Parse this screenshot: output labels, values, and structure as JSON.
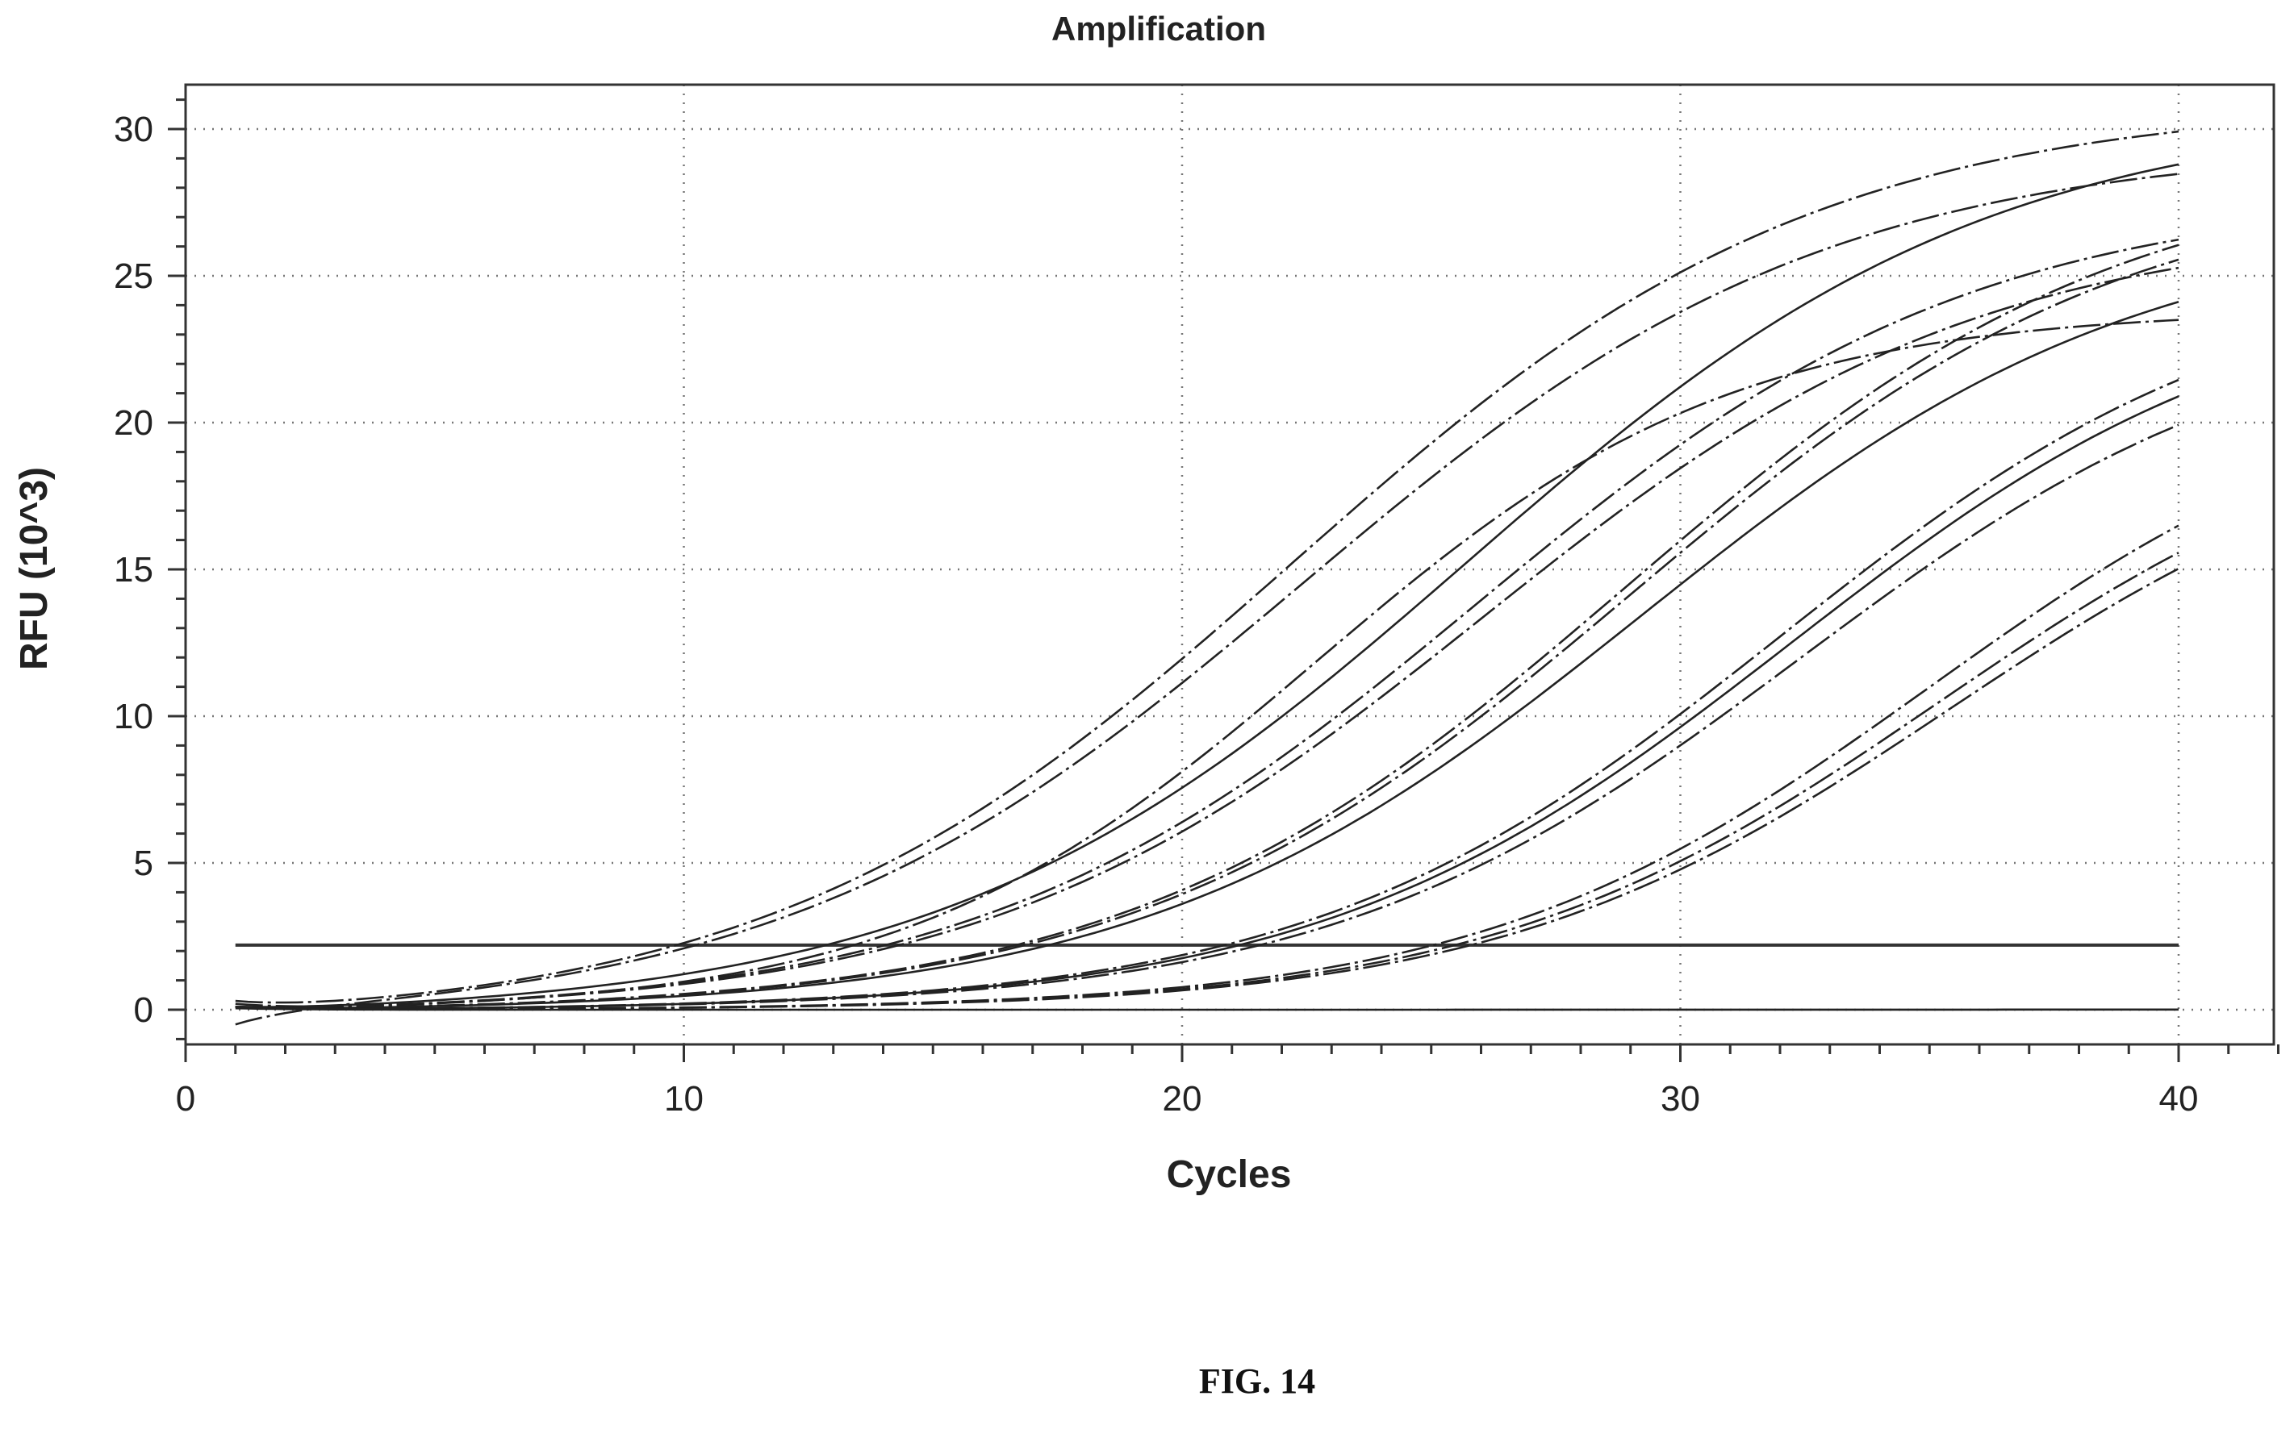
{
  "chart_data": {
    "type": "line",
    "title": "Amplification",
    "xlabel": "Cycles",
    "ylabel": "RFU (10^3)",
    "xlim": [
      0,
      42
    ],
    "ylim": [
      -1,
      31.5
    ],
    "xticks": [
      0,
      10,
      20,
      30,
      40
    ],
    "yticks": [
      0,
      5,
      10,
      15,
      20,
      25,
      30
    ],
    "grid": true,
    "threshold": 2.2,
    "series": [
      {
        "ct": 22.2,
        "plateau": 31.5,
        "k": 0.19,
        "dashed": true,
        "start": 0.3
      },
      {
        "ct": 22.4,
        "plateau": 30.0,
        "k": 0.19,
        "dashed": true,
        "start": -0.5
      },
      {
        "ct": 22.7,
        "plateau": 24.0,
        "k": 0.24,
        "dashed": true,
        "start": 0.2
      },
      {
        "ct": 25.7,
        "plateau": 31.0,
        "k": 0.19,
        "dashed": false,
        "start": 0.1
      },
      {
        "ct": 25.9,
        "plateau": 28.0,
        "k": 0.2,
        "dashed": true,
        "start": 0.1
      },
      {
        "ct": 26.0,
        "plateau": 27.0,
        "k": 0.2,
        "dashed": true,
        "start": 0.1
      },
      {
        "ct": 28.9,
        "plateau": 29.0,
        "k": 0.2,
        "dashed": true,
        "start": 0.1
      },
      {
        "ct": 29.0,
        "plateau": 28.5,
        "k": 0.2,
        "dashed": true,
        "start": 0.1
      },
      {
        "ct": 29.2,
        "plateau": 27.0,
        "k": 0.2,
        "dashed": false,
        "start": 0.1
      },
      {
        "ct": 32.0,
        "plateau": 25.5,
        "k": 0.21,
        "dashed": true,
        "start": 0.1
      },
      {
        "ct": 32.2,
        "plateau": 25.0,
        "k": 0.21,
        "dashed": false,
        "start": 0.1
      },
      {
        "ct": 32.4,
        "plateau": 24.0,
        "k": 0.21,
        "dashed": true,
        "start": 0.1
      },
      {
        "ct": 35.0,
        "plateau": 22.0,
        "k": 0.22,
        "dashed": true,
        "start": 0.1
      },
      {
        "ct": 35.2,
        "plateau": 21.0,
        "k": 0.22,
        "dashed": true,
        "start": 0.1
      },
      {
        "ct": 35.4,
        "plateau": 20.5,
        "k": 0.22,
        "dashed": true,
        "start": 0.1
      },
      {
        "ct": 60.0,
        "plateau": 0.05,
        "k": 0.1,
        "dashed": false,
        "start": 0.05
      }
    ]
  },
  "figure_label": "FIG. 14"
}
